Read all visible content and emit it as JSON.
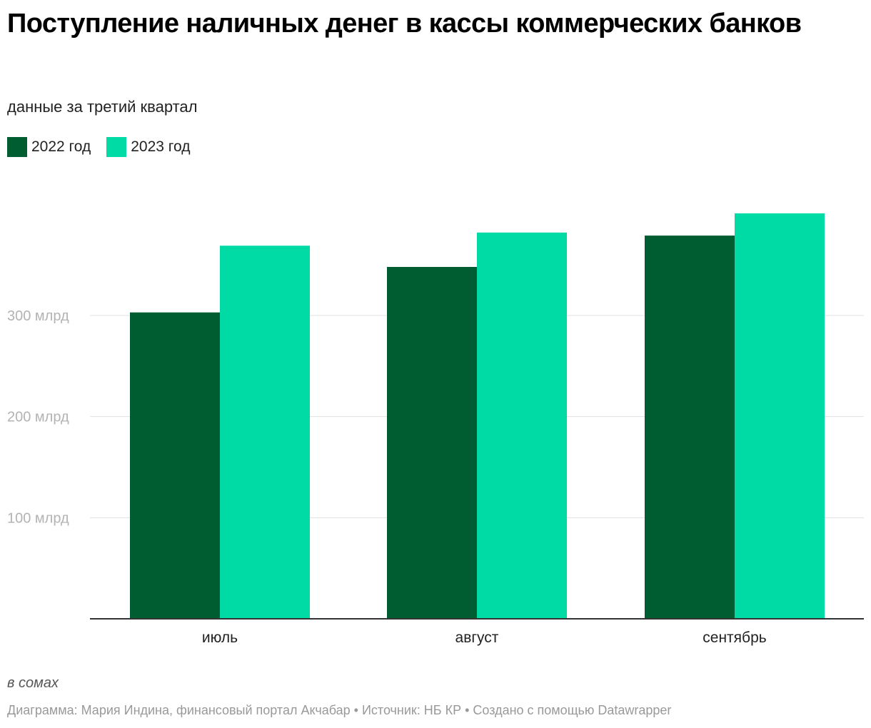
{
  "header": {
    "title": "Поступление наличных денег в кассы коммерческих банков",
    "subtitle": "данные за третий квартал"
  },
  "legend": [
    {
      "label": "2022 год",
      "color": "#005c31"
    },
    {
      "label": "2023 год",
      "color": "#00dba6"
    }
  ],
  "chart_data": {
    "type": "bar",
    "title": "Поступление наличных денег в кассы коммерческих банков",
    "subtitle": "данные за третий квартал",
    "categories": [
      "июль",
      "август",
      "сентябрь"
    ],
    "series": [
      {
        "name": "2022 год",
        "color": "#005c31",
        "values": [
          303,
          348,
          379
        ]
      },
      {
        "name": "2023 год",
        "color": "#00dba6",
        "values": [
          369,
          382,
          401
        ]
      }
    ],
    "y_ticks": [
      {
        "value": 100,
        "label": "100 млрд"
      },
      {
        "value": 200,
        "label": "200 млрд"
      },
      {
        "value": 300,
        "label": "300 млрд"
      }
    ],
    "ylim": [
      0,
      420
    ],
    "grid": true,
    "legend_position": "top-left",
    "xlabel": "",
    "ylabel": ""
  },
  "footer": {
    "note": "в сомах",
    "credits": "Диаграмма: Мария Индина, финансовый портал Акчабар • Источник: НБ КР • Создано с помощью Datawrapper"
  }
}
